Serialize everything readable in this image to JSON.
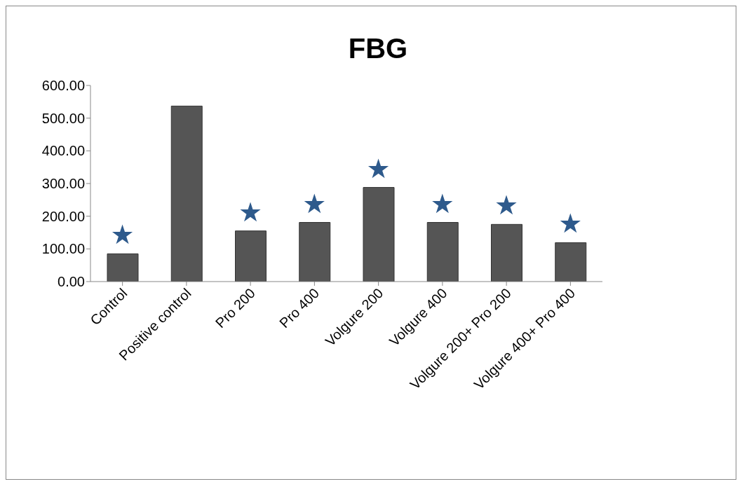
{
  "chart_data": {
    "type": "bar",
    "title": "FBG",
    "categories": [
      "Control",
      "Positive control",
      "Pro 200",
      "Pro 400",
      "Volgure 200",
      "Volgure 400",
      "Volgure 200+ Pro 200",
      "Volgure 400+ Pro 400"
    ],
    "values": [
      85,
      537,
      155,
      181,
      288,
      181,
      175,
      119
    ],
    "color": "#555555",
    "ylim": [
      0,
      600
    ],
    "yticks": [
      {
        "value": 0,
        "label": "0.00"
      },
      {
        "value": 100,
        "label": "100.00"
      },
      {
        "value": 200,
        "label": "200.00"
      },
      {
        "value": 300,
        "label": "300.00"
      },
      {
        "value": 400,
        "label": "400.00"
      },
      {
        "value": 500,
        "label": "500.00"
      },
      {
        "value": 600,
        "label": "600.00"
      }
    ],
    "annotations": [
      {
        "text": "★",
        "x": "Control",
        "y": 85
      },
      {
        "text": "★",
        "x": "Pro 200",
        "y": 155
      },
      {
        "text": "★",
        "x": "Pro 400",
        "y": 181
      },
      {
        "text": "★",
        "x": "Volgure 200",
        "y": 288
      },
      {
        "text": "★",
        "x": "Volgure 400",
        "y": 181
      },
      {
        "text": "★",
        "x": "Volgure 200+ Pro 200",
        "y": 175
      },
      {
        "text": "★",
        "x": "Volgure 400+ Pro 400",
        "y": 119
      }
    ],
    "grid": false,
    "legend": false
  }
}
